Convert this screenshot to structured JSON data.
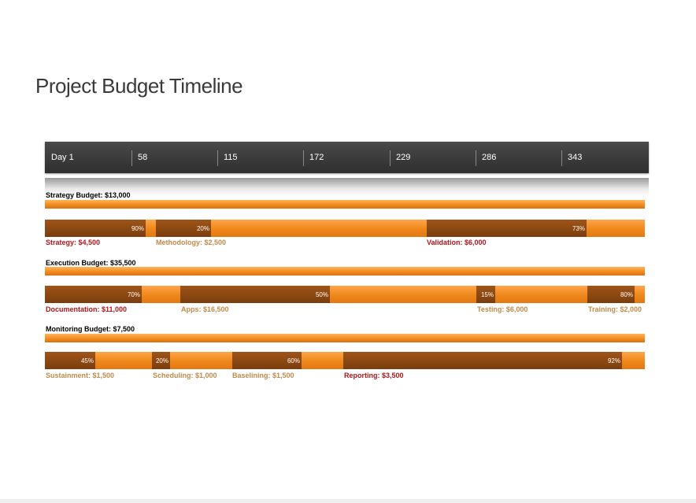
{
  "title": "Project Budget Timeline",
  "timeline": {
    "ticks": [
      "Day 1",
      "58",
      "115",
      "172",
      "229",
      "286",
      "343"
    ]
  },
  "colors": {
    "accent": "#f28c1e",
    "progress": "#7a3d0d",
    "label_red": "#b0151a",
    "label_tan": "#c08a4a",
    "header": "#333333"
  },
  "sections": [
    {
      "label": "Strategy Budget: $13,000",
      "tasks": [
        {
          "name": "Strategy: $4,500",
          "percent": "90%",
          "label_color": "red"
        },
        {
          "name": "Methodology: $2,500",
          "percent": "20%",
          "label_color": "tan"
        },
        {
          "name": "Validation: $6,000",
          "percent": "73%",
          "label_color": "red"
        }
      ]
    },
    {
      "label": "Execution Budget: $35,500",
      "tasks": [
        {
          "name": "Documentation: $11,000",
          "percent": "70%",
          "label_color": "red"
        },
        {
          "name": "Apps: $16,500",
          "percent": "50%",
          "label_color": "tan"
        },
        {
          "name": "Testing: $6,000",
          "percent": "15%",
          "label_color": "tan"
        },
        {
          "name": "Training: $2,000",
          "percent": "80%",
          "label_color": "tan"
        }
      ]
    },
    {
      "label": "Monitoring Budget: $7,500",
      "tasks": [
        {
          "name": "Sustainment: $1,500",
          "percent": "45%",
          "label_color": "tan"
        },
        {
          "name": "Scheduling: $1,000",
          "percent": "20%",
          "label_color": "tan"
        },
        {
          "name": "Baselining: $1,500",
          "percent": "60%",
          "label_color": "tan"
        },
        {
          "name": "Reporting: $3,500",
          "percent": "92%",
          "label_color": "red"
        }
      ]
    }
  ]
}
